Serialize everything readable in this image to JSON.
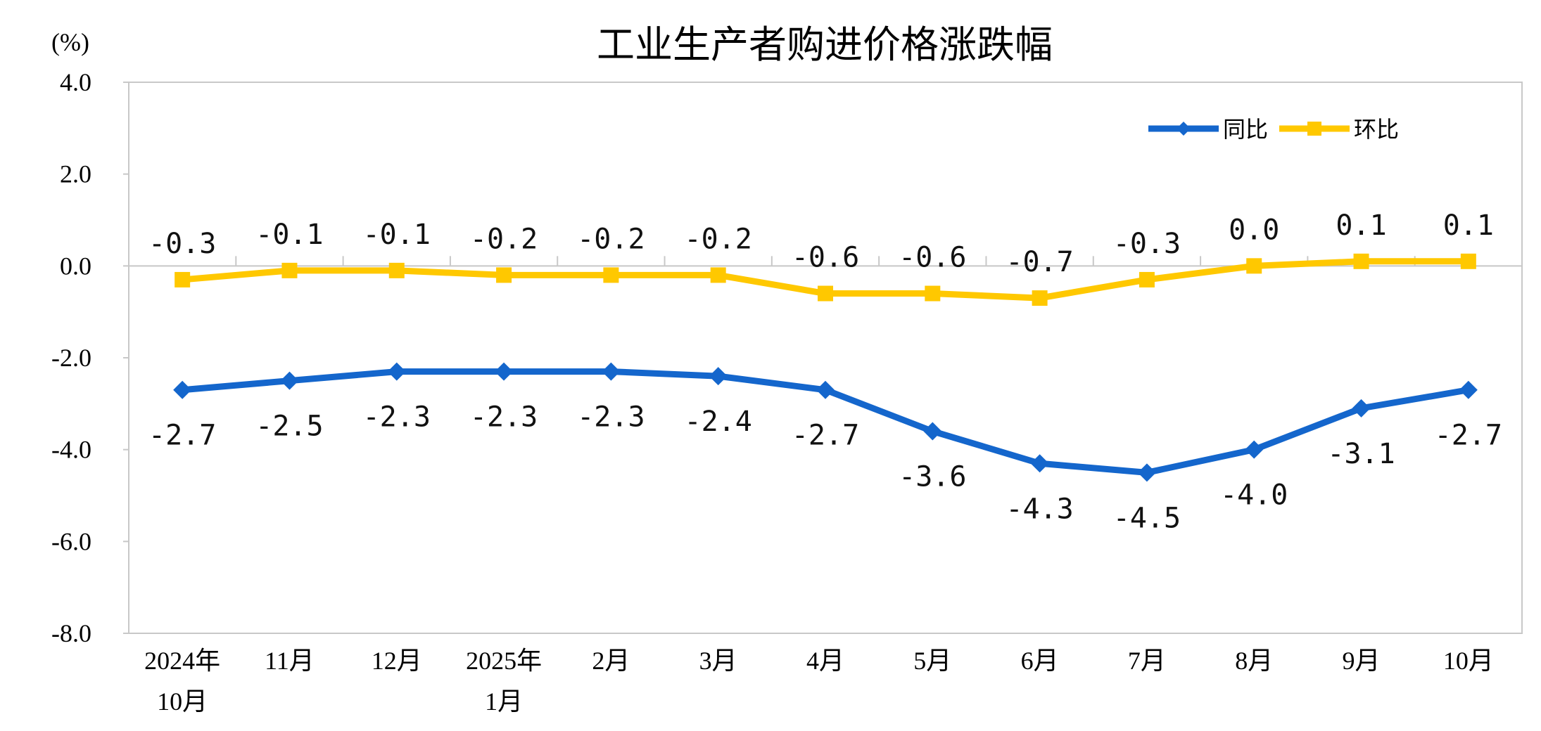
{
  "chart_data": {
    "type": "line",
    "title": "工业生产者购进价格涨跌幅",
    "ylabel": "(%)",
    "xlabel": "",
    "ylim": [
      -8.0,
      4.0
    ],
    "yticks": [
      "4.0",
      "2.0",
      "0.0",
      "-2.0",
      "-4.0",
      "-6.0",
      "-8.0"
    ],
    "ytick_values": [
      4,
      2,
      0,
      -2,
      -4,
      -6,
      -8
    ],
    "categories": [
      [
        "2024年",
        "10月"
      ],
      [
        "11月"
      ],
      [
        "12月"
      ],
      [
        "2025年",
        "1月"
      ],
      [
        "2月"
      ],
      [
        "3月"
      ],
      [
        "4月"
      ],
      [
        "5月"
      ],
      [
        "6月"
      ],
      [
        "7月"
      ],
      [
        "8月"
      ],
      [
        "9月"
      ],
      [
        "10月"
      ]
    ],
    "grid": false,
    "legend_position": "top-right",
    "series": [
      {
        "name": "同比",
        "color": "#1466cc",
        "marker": "diamond",
        "values": [
          -2.7,
          -2.5,
          -2.3,
          -2.3,
          -2.3,
          -2.4,
          -2.7,
          -3.6,
          -4.3,
          -4.5,
          -4.0,
          -3.1,
          -2.7
        ],
        "labels": [
          "-2.7",
          "-2.5",
          "-2.3",
          "-2.3",
          "-2.3",
          "-2.4",
          "-2.7",
          "-3.6",
          "-4.3",
          "-4.5",
          "-4.0",
          "-3.1",
          "-2.7"
        ]
      },
      {
        "name": "环比",
        "color": "#ffc800",
        "marker": "square",
        "values": [
          -0.3,
          -0.1,
          -0.1,
          -0.2,
          -0.2,
          -0.2,
          -0.6,
          -0.6,
          -0.7,
          -0.3,
          0.0,
          0.1,
          0.1
        ],
        "labels": [
          "-0.3",
          "-0.1",
          "-0.1",
          "-0.2",
          "-0.2",
          "-0.2",
          "-0.6",
          "-0.6",
          "-0.7",
          "-0.3",
          "0.0",
          "0.1",
          "0.1"
        ]
      }
    ]
  }
}
